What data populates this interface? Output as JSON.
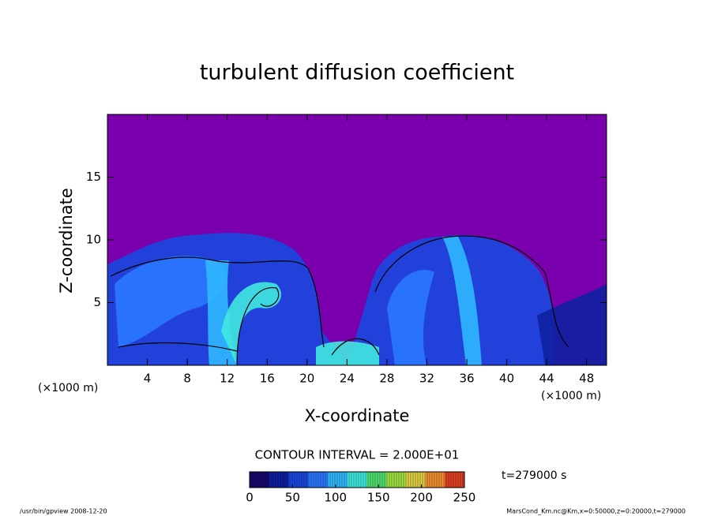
{
  "chart_data": {
    "type": "contour",
    "title": "turbulent diffusion coefficient",
    "x_label": "X-coordinate",
    "y_label": "Z-coordinate",
    "x_unit": "(×1000 m)",
    "y_unit": "(×1000 m)",
    "xlim": [
      0,
      50
    ],
    "xticks": [
      4,
      8,
      12,
      16,
      20,
      24,
      28,
      32,
      36,
      40,
      44,
      48
    ],
    "ylim": [
      0,
      20
    ],
    "yticks": [
      5,
      10,
      15
    ],
    "background": "#7b00ad",
    "colormap": [
      "#7b00ad",
      "#1a0a6e",
      "#1020a0",
      "#1848e0",
      "#2a78ff",
      "#30b8ff",
      "#40e8e0",
      "#50e070",
      "#a0e040",
      "#e0d040",
      "#f09030",
      "#e04020"
    ],
    "contour_interval": "CONTOUR INTERVAL = 2.000E+01",
    "colorbar": {
      "lim": [
        0,
        250
      ],
      "ticks": [
        0,
        50,
        100,
        150,
        200,
        250
      ]
    },
    "time_label": "t=279000 s",
    "footer_left": "/usr/bin/gpview   2008-12-20",
    "footer_right": "MarsCond_Km.nc@Km,x=0:50000,z=0:20000,t=279000"
  }
}
